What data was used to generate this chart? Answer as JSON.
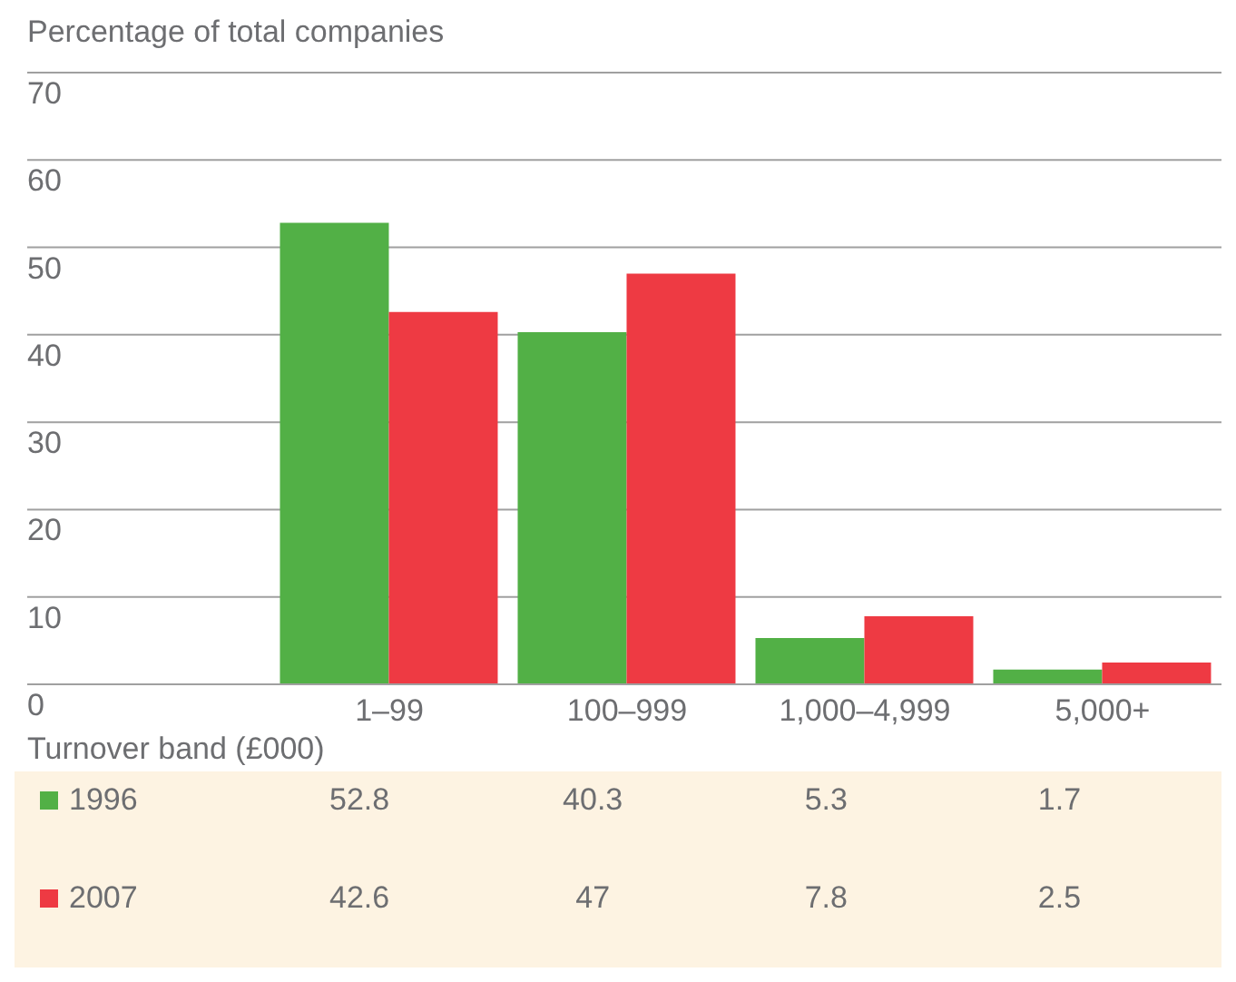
{
  "chart_data": {
    "type": "bar",
    "ylabel": "Percentage of total companies",
    "xlabel": "Turnover band (£000)",
    "categories": [
      "1–99",
      "100–999",
      "1,000–4,999",
      "5,000+"
    ],
    "series": [
      {
        "name": "1996",
        "color": "#52b046",
        "values": [
          52.8,
          40.3,
          5.3,
          1.7
        ]
      },
      {
        "name": "2007",
        "color": "#ee3a43",
        "values": [
          42.6,
          47,
          7.8,
          2.5
        ]
      }
    ],
    "ylim": [
      0,
      70
    ],
    "yticks": [
      0,
      10,
      20,
      30,
      40,
      50,
      60,
      70
    ],
    "grid": "y",
    "legend": "bottom",
    "data_labels": true
  }
}
